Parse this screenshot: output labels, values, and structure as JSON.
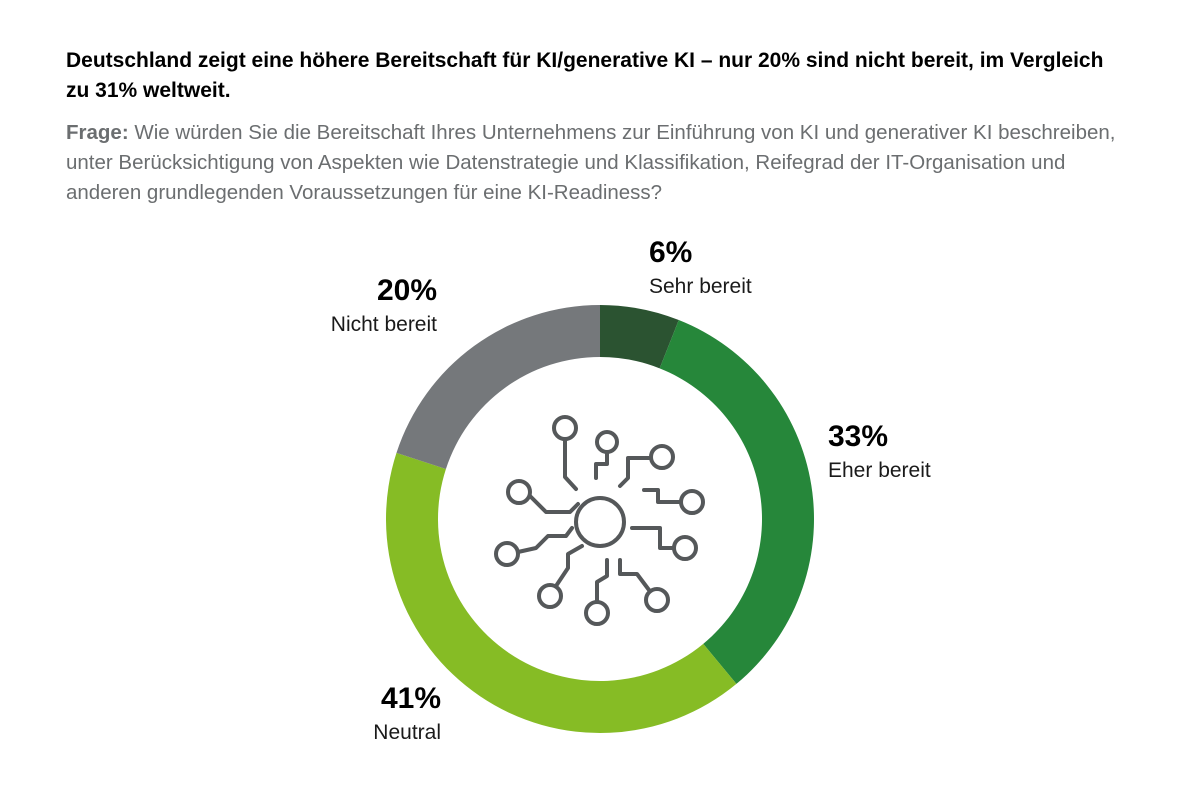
{
  "header": {
    "title": "Deutschland zeigt eine höhere Bereitschaft für KI/generative KI – nur 20% sind nicht bereit, im Vergleich zu 31% weltweit.",
    "question_label": "Frage:",
    "question_text": " Wie würden Sie die Bereitschaft Ihres Unternehmens zur Einführung von KI und generativer KI beschreiben, unter Berücksichtigung von Aspekten wie Datenstrategie und Klassifikation, Reifegrad der IT-Organisation und anderen grundlegenden Voraussetzungen für eine KI-Readiness?"
  },
  "center_icon": "ai-network-chip-icon",
  "chart_data": {
    "type": "pie",
    "variant": "donut",
    "title": "",
    "start": "top",
    "direction": "clockwise",
    "slices": [
      {
        "label": "Sehr bereit",
        "value": 6,
        "display": "6%",
        "color": "#2b5331"
      },
      {
        "label": "Eher bereit",
        "value": 33,
        "display": "33%",
        "color": "#26873a"
      },
      {
        "label": "Neutral",
        "value": 41,
        "display": "41%",
        "color": "#86bc25"
      },
      {
        "label": "Nicht bereit",
        "value": 20,
        "display": "20%",
        "color": "#75787b"
      }
    ]
  }
}
